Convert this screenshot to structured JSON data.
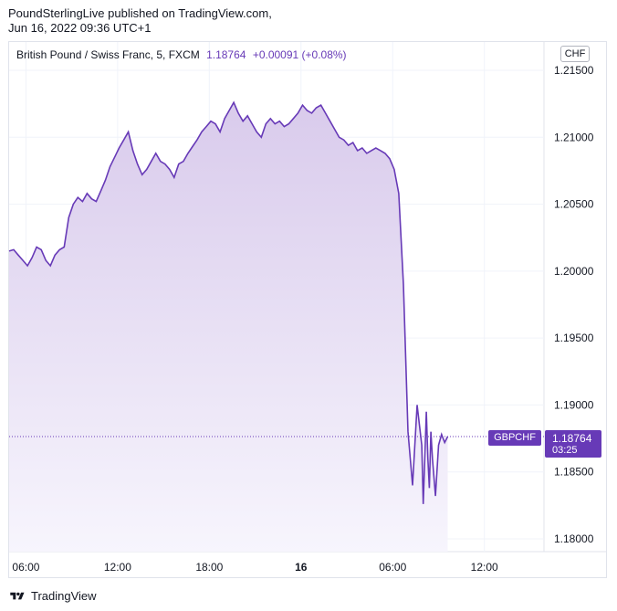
{
  "publisher": {
    "line1": "PoundSterlingLive published on TradingView.com,",
    "line2": "Jun 16, 2022 09:36 UTC+1"
  },
  "legend": {
    "symbol": "British Pound / Swiss Franc, 5, FXCM",
    "last": "1.18764",
    "change": "+0.00091 (+0.08%)"
  },
  "currency_label": "CHF",
  "price_tag": {
    "ticker": "GBPCHF",
    "price": "1.18764",
    "countdown": "03:25"
  },
  "footer": {
    "brand": "TradingView"
  },
  "colors": {
    "line": "#673ab7",
    "fill_top": "#d9cbec",
    "fill_bottom": "#f7f5fd",
    "grid": "#f0f3fa",
    "axis_text": "#131722"
  },
  "chart_data": {
    "type": "area",
    "title": "",
    "xlabel": "",
    "ylabel": "",
    "ylim": [
      1.178,
      1.2175
    ],
    "y_ticks": [
      "1.21500",
      "1.21000",
      "1.20500",
      "1.20000",
      "1.19500",
      "1.19000",
      "1.18500",
      "1.18000"
    ],
    "x_ticks": [
      {
        "label": "06:00",
        "bold": false
      },
      {
        "label": "12:00",
        "bold": false
      },
      {
        "label": "18:00",
        "bold": false
      },
      {
        "label": "16",
        "bold": true
      },
      {
        "label": "06:00",
        "bold": false
      },
      {
        "label": "12:00",
        "bold": false
      }
    ],
    "x_tick_hours": [
      6,
      12,
      18,
      24,
      30,
      36
    ],
    "x_range_hours": [
      4.9,
      39.9
    ],
    "last_price": 1.18764,
    "series": [
      {
        "x": [
          4.9,
          5.2,
          5.5,
          5.8,
          6.1,
          6.4,
          6.7,
          7.0,
          7.3,
          7.6,
          7.9,
          8.2,
          8.5,
          8.8,
          9.1,
          9.4,
          9.7,
          10.0,
          10.3,
          10.6,
          10.9,
          11.2,
          11.5,
          11.8,
          12.1,
          12.4,
          12.7,
          13.0,
          13.3,
          13.6,
          13.9,
          14.2,
          14.5,
          14.8,
          15.1,
          15.4,
          15.7,
          16.0,
          16.3,
          16.6,
          16.9,
          17.2,
          17.5,
          17.8,
          18.1,
          18.4,
          18.7,
          19.0,
          19.3,
          19.6,
          19.9,
          20.2,
          20.5,
          20.8,
          21.1,
          21.4,
          21.7,
          22.0,
          22.3,
          22.6,
          22.9,
          23.2,
          23.5,
          23.8,
          24.1,
          24.4,
          24.7,
          25.0,
          25.3,
          25.6,
          25.9,
          26.2,
          26.5,
          26.8,
          27.1,
          27.4,
          27.7,
          28.0,
          28.3,
          28.6,
          28.9,
          29.2,
          29.5,
          29.8,
          30.1,
          30.4,
          30.7,
          31.0,
          31.3,
          31.6,
          31.9,
          32.0,
          32.1,
          32.2,
          32.3,
          32.4,
          32.5,
          32.6,
          32.8,
          33.0,
          33.2,
          33.4,
          33.6
        ],
        "values": [
          1.2015,
          1.2016,
          1.2012,
          1.2008,
          1.2004,
          1.201,
          1.2018,
          1.2016,
          1.2008,
          1.2004,
          1.2012,
          1.2016,
          1.2018,
          1.204,
          1.205,
          1.2055,
          1.2052,
          1.2058,
          1.2054,
          1.2052,
          1.206,
          1.2068,
          1.2078,
          1.2085,
          1.2092,
          1.2098,
          1.2104,
          1.209,
          1.208,
          1.2072,
          1.2076,
          1.2082,
          1.2088,
          1.2082,
          1.208,
          1.2076,
          1.207,
          1.208,
          1.2082,
          1.2088,
          1.2093,
          1.2098,
          1.2104,
          1.2108,
          1.2112,
          1.211,
          1.2104,
          1.2114,
          1.212,
          1.2126,
          1.2118,
          1.2112,
          1.2116,
          1.211,
          1.2104,
          1.21,
          1.211,
          1.2114,
          1.211,
          1.2112,
          1.2108,
          1.211,
          1.2114,
          1.2118,
          1.2124,
          1.212,
          1.2118,
          1.2122,
          1.2124,
          1.2118,
          1.2112,
          1.2106,
          1.21,
          1.2098,
          1.2094,
          1.2096,
          1.209,
          1.2092,
          1.2088,
          1.209,
          1.2092,
          1.209,
          1.2088,
          1.2084,
          1.2076,
          1.2058,
          1.199,
          1.188,
          1.184,
          1.19,
          1.187,
          1.1826,
          1.186,
          1.1895,
          1.186,
          1.1838,
          1.188,
          1.186,
          1.1832,
          1.187,
          1.1878,
          1.1872,
          1.18764
        ]
      }
    ]
  }
}
